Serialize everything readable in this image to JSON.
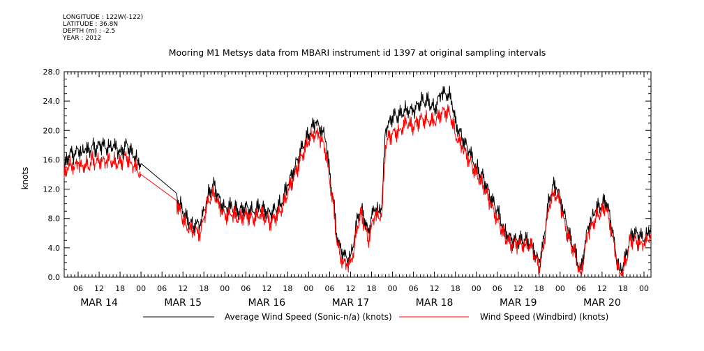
{
  "meta": {
    "longitude": "LONGITUDE : 122W(-122)",
    "latitude": "LATITUDE : 36.8N",
    "depth": "DEPTH (m) : -2.5",
    "year": "YEAR : 2012"
  },
  "chart_data": {
    "type": "line",
    "title": "Mooring M1 Metsys data from MBARI instrument id 1397 at original sampling intervals",
    "ylabel": "knots",
    "xlabel": "",
    "ylim": [
      0,
      28
    ],
    "yticks": [
      0,
      4,
      8,
      12,
      16,
      20,
      24,
      28
    ],
    "ytick_labels": [
      "0.0",
      "4.0",
      "8.0",
      "12.0",
      "16.0",
      "20.0",
      "24.0",
      "28.0"
    ],
    "xlim_hours": [
      -22,
      146
    ],
    "x_hour_labels": [
      {
        "t": -18,
        "label": "06"
      },
      {
        "t": -12,
        "label": "12"
      },
      {
        "t": -6,
        "label": "18"
      },
      {
        "t": 0,
        "label": "00"
      },
      {
        "t": 6,
        "label": "06"
      },
      {
        "t": 12,
        "label": "12"
      },
      {
        "t": 18,
        "label": "18"
      },
      {
        "t": 24,
        "label": "00"
      },
      {
        "t": 30,
        "label": "06"
      },
      {
        "t": 36,
        "label": "12"
      },
      {
        "t": 42,
        "label": "18"
      },
      {
        "t": 48,
        "label": "00"
      },
      {
        "t": 54,
        "label": "06"
      },
      {
        "t": 60,
        "label": "12"
      },
      {
        "t": 66,
        "label": "18"
      },
      {
        "t": 72,
        "label": "00"
      },
      {
        "t": 78,
        "label": "06"
      },
      {
        "t": 84,
        "label": "12"
      },
      {
        "t": 90,
        "label": "18"
      },
      {
        "t": 96,
        "label": "00"
      },
      {
        "t": 102,
        "label": "06"
      },
      {
        "t": 108,
        "label": "12"
      },
      {
        "t": 114,
        "label": "18"
      },
      {
        "t": 120,
        "label": "00"
      },
      {
        "t": 126,
        "label": "06"
      },
      {
        "t": 132,
        "label": "12"
      },
      {
        "t": 138,
        "label": "18"
      },
      {
        "t": 144,
        "label": "00"
      }
    ],
    "x_day_labels": [
      {
        "t": -12,
        "label": "MAR 14"
      },
      {
        "t": 12,
        "label": "MAR 15"
      },
      {
        "t": 36,
        "label": "MAR 16"
      },
      {
        "t": 60,
        "label": "MAR 17"
      },
      {
        "t": 84,
        "label": "MAR 18"
      },
      {
        "t": 108,
        "label": "MAR 19"
      },
      {
        "t": 132,
        "label": "MAR 20"
      }
    ],
    "legend_placement": "bottom",
    "series": [
      {
        "name": "Average Wind Speed (Sonic-n/a) (knots)",
        "color": "#000000",
        "points": [
          [
            -22,
            14.5
          ],
          [
            -21,
            16.5
          ],
          [
            -20,
            17
          ],
          [
            -19,
            16.5
          ],
          [
            -18,
            17.5
          ],
          [
            -17,
            17
          ],
          [
            -16,
            17.5
          ],
          [
            -15,
            17
          ],
          [
            -14,
            18
          ],
          [
            -13,
            17.5
          ],
          [
            -12,
            18
          ],
          [
            -11,
            18
          ],
          [
            -10,
            17.5
          ],
          [
            -9,
            18
          ],
          [
            -8,
            17.8
          ],
          [
            -7,
            17.5
          ],
          [
            -6,
            17
          ],
          [
            -5,
            17.5
          ],
          [
            -4,
            18.2
          ],
          [
            -3,
            17
          ],
          [
            -2,
            16.5
          ],
          [
            -1,
            16
          ],
          [
            0,
            15.5
          ],
          [
            10,
            11.5
          ],
          [
            11,
            10
          ],
          [
            12,
            9
          ],
          [
            13,
            8
          ],
          [
            14,
            7.5
          ],
          [
            15,
            7
          ],
          [
            16,
            7.5
          ],
          [
            17,
            7
          ],
          [
            18,
            9
          ],
          [
            19,
            11
          ],
          [
            20,
            12
          ],
          [
            21,
            12.5
          ],
          [
            22,
            11
          ],
          [
            23,
            10
          ],
          [
            24,
            9.5
          ],
          [
            26,
            9.5
          ],
          [
            28,
            9
          ],
          [
            30,
            9.5
          ],
          [
            32,
            9
          ],
          [
            34,
            9.5
          ],
          [
            36,
            9
          ],
          [
            37,
            8.5
          ],
          [
            38,
            9
          ],
          [
            40,
            10
          ],
          [
            42,
            12.5
          ],
          [
            44,
            15
          ],
          [
            46,
            17.5
          ],
          [
            48,
            19.5
          ],
          [
            49,
            20.5
          ],
          [
            50,
            21
          ],
          [
            51,
            20.5
          ],
          [
            52,
            20
          ],
          [
            53,
            18.5
          ],
          [
            54,
            14
          ],
          [
            55,
            11
          ],
          [
            56,
            6
          ],
          [
            57,
            4
          ],
          [
            58,
            3
          ],
          [
            59,
            2.5
          ],
          [
            60,
            3
          ],
          [
            61,
            5
          ],
          [
            62,
            8
          ],
          [
            63,
            9.5
          ],
          [
            64,
            8
          ],
          [
            65,
            6
          ],
          [
            66,
            8
          ],
          [
            67,
            9.5
          ],
          [
            68,
            9
          ],
          [
            69,
            10
          ],
          [
            70,
            20
          ],
          [
            71,
            21
          ],
          [
            72,
            22
          ],
          [
            74,
            22
          ],
          [
            76,
            23
          ],
          [
            78,
            22.5
          ],
          [
            80,
            24
          ],
          [
            82,
            24
          ],
          [
            84,
            23
          ],
          [
            86,
            25
          ],
          [
            88,
            25
          ],
          [
            89,
            24
          ],
          [
            90,
            21
          ],
          [
            92,
            19
          ],
          [
            94,
            17
          ],
          [
            96,
            15
          ],
          [
            98,
            13.5
          ],
          [
            100,
            11
          ],
          [
            102,
            9
          ],
          [
            104,
            6.5
          ],
          [
            106,
            5
          ],
          [
            108,
            5
          ],
          [
            110,
            5
          ],
          [
            112,
            4.5
          ],
          [
            113,
            3
          ],
          [
            114,
            2
          ],
          [
            115,
            4
          ],
          [
            116,
            8
          ],
          [
            117,
            11
          ],
          [
            118,
            12.5
          ],
          [
            119,
            12
          ],
          [
            120,
            11
          ],
          [
            121,
            9
          ],
          [
            122,
            7
          ],
          [
            123,
            5
          ],
          [
            124,
            4
          ],
          [
            125,
            2
          ],
          [
            126,
            1
          ],
          [
            127,
            4
          ],
          [
            128,
            7
          ],
          [
            129,
            8
          ],
          [
            130,
            9
          ],
          [
            131,
            9.5
          ],
          [
            132,
            10
          ],
          [
            133,
            10.5
          ],
          [
            134,
            9
          ],
          [
            135,
            6
          ],
          [
            136,
            3
          ],
          [
            137,
            1
          ],
          [
            138,
            1.5
          ],
          [
            139,
            3
          ],
          [
            140,
            5.5
          ],
          [
            141,
            6
          ],
          [
            142,
            6
          ],
          [
            143,
            5.5
          ],
          [
            144,
            5
          ],
          [
            145,
            6
          ],
          [
            146,
            7
          ]
        ]
      },
      {
        "name": "Wind Speed (Windbird) (knots)",
        "color": "#ff0000",
        "points": [
          [
            -22,
            13.5
          ],
          [
            -21,
            15
          ],
          [
            -20,
            15.5
          ],
          [
            -19,
            15
          ],
          [
            -18,
            15.5
          ],
          [
            -17,
            15
          ],
          [
            -16,
            15.5
          ],
          [
            -15,
            15
          ],
          [
            -14,
            16
          ],
          [
            -13,
            15.5
          ],
          [
            -12,
            16
          ],
          [
            -11,
            16
          ],
          [
            -10,
            15.5
          ],
          [
            -9,
            16
          ],
          [
            -8,
            15.8
          ],
          [
            -7,
            15.5
          ],
          [
            -6,
            15.5
          ],
          [
            -5,
            16
          ],
          [
            -4,
            16.5
          ],
          [
            -3,
            15.5
          ],
          [
            -2,
            15
          ],
          [
            -1,
            14.5
          ],
          [
            0,
            14
          ],
          [
            10,
            10.5
          ],
          [
            11,
            9
          ],
          [
            12,
            8
          ],
          [
            13,
            7
          ],
          [
            14,
            6.5
          ],
          [
            15,
            6
          ],
          [
            16,
            6.5
          ],
          [
            17,
            6
          ],
          [
            18,
            8
          ],
          [
            19,
            10
          ],
          [
            20,
            11
          ],
          [
            21,
            11.5
          ],
          [
            22,
            10
          ],
          [
            23,
            9
          ],
          [
            24,
            8.5
          ],
          [
            26,
            8.5
          ],
          [
            28,
            8
          ],
          [
            30,
            8.5
          ],
          [
            32,
            8
          ],
          [
            34,
            8.5
          ],
          [
            36,
            8
          ],
          [
            37,
            7.5
          ],
          [
            38,
            8
          ],
          [
            40,
            9
          ],
          [
            42,
            11.5
          ],
          [
            44,
            14
          ],
          [
            46,
            16.5
          ],
          [
            48,
            18.5
          ],
          [
            49,
            19.5
          ],
          [
            50,
            19.5
          ],
          [
            51,
            19
          ],
          [
            52,
            18.5
          ],
          [
            53,
            17
          ],
          [
            54,
            13
          ],
          [
            55,
            10
          ],
          [
            56,
            5
          ],
          [
            57,
            3
          ],
          [
            58,
            2
          ],
          [
            59,
            1.5
          ],
          [
            60,
            2
          ],
          [
            61,
            4
          ],
          [
            62,
            7
          ],
          [
            63,
            8.5
          ],
          [
            64,
            7
          ],
          [
            65,
            5
          ],
          [
            66,
            7
          ],
          [
            67,
            8.5
          ],
          [
            68,
            8
          ],
          [
            69,
            9
          ],
          [
            70,
            18
          ],
          [
            71,
            19
          ],
          [
            72,
            19.5
          ],
          [
            74,
            20
          ],
          [
            76,
            21
          ],
          [
            78,
            20.5
          ],
          [
            80,
            21.5
          ],
          [
            82,
            21.5
          ],
          [
            84,
            21
          ],
          [
            86,
            22.5
          ],
          [
            88,
            22.5
          ],
          [
            89,
            21.5
          ],
          [
            90,
            19.5
          ],
          [
            92,
            17.5
          ],
          [
            94,
            16
          ],
          [
            96,
            14
          ],
          [
            98,
            12.5
          ],
          [
            100,
            10
          ],
          [
            102,
            8
          ],
          [
            104,
            5.5
          ],
          [
            106,
            4.5
          ],
          [
            108,
            4.5
          ],
          [
            110,
            4.5
          ],
          [
            112,
            4
          ],
          [
            113,
            2.5
          ],
          [
            114,
            1.5
          ],
          [
            115,
            3.5
          ],
          [
            116,
            7
          ],
          [
            117,
            10
          ],
          [
            118,
            11.5
          ],
          [
            119,
            11
          ],
          [
            120,
            10
          ],
          [
            121,
            8
          ],
          [
            122,
            6
          ],
          [
            123,
            4.5
          ],
          [
            124,
            3.5
          ],
          [
            125,
            1.5
          ],
          [
            126,
            0.5
          ],
          [
            127,
            3.5
          ],
          [
            128,
            6
          ],
          [
            129,
            7
          ],
          [
            130,
            8
          ],
          [
            131,
            8.5
          ],
          [
            132,
            9
          ],
          [
            133,
            9.5
          ],
          [
            134,
            8
          ],
          [
            135,
            5.5
          ],
          [
            136,
            2.5
          ],
          [
            137,
            0.5
          ],
          [
            138,
            1
          ],
          [
            139,
            2.5
          ],
          [
            140,
            5
          ],
          [
            141,
            5
          ],
          [
            142,
            5
          ],
          [
            143,
            4.5
          ],
          [
            144,
            4.5
          ],
          [
            145,
            5
          ],
          [
            146,
            6
          ]
        ]
      }
    ]
  }
}
